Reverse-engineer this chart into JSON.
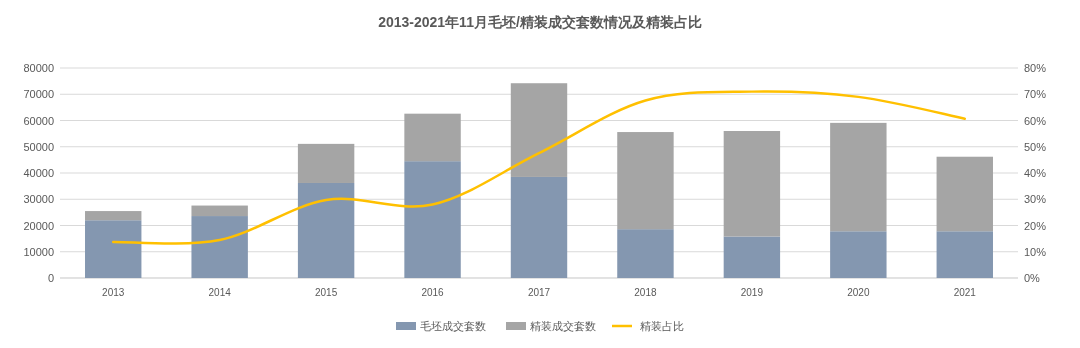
{
  "chart_data": {
    "type": "bar",
    "title": "2013-2021年11月毛坯/精装成交套数情况及精装占比",
    "categories": [
      "2013",
      "2014",
      "2015",
      "2016",
      "2017",
      "2018",
      "2019",
      "2020",
      "2021"
    ],
    "stacked": true,
    "legend": "bottom",
    "grid": "y",
    "series": [
      {
        "name": "毛坯成交套数",
        "color": "#8497b0",
        "values": [
          22000,
          23600,
          36200,
          44500,
          38500,
          18600,
          15800,
          17800,
          17800
        ]
      },
      {
        "name": "精装成交套数",
        "color": "#a5a5a5",
        "values": [
          3500,
          4000,
          14900,
          18100,
          35700,
          37000,
          40200,
          41300,
          28400
        ]
      },
      {
        "name": "精装占比",
        "type": "line",
        "axis": "y2",
        "color": "#ffc000",
        "values": [
          13.7,
          14.5,
          29.7,
          28,
          47.6,
          67.6,
          71,
          69,
          60.7
        ]
      }
    ],
    "ylim": [
      0,
      80000
    ],
    "yticks": [
      0,
      10000,
      20000,
      30000,
      40000,
      50000,
      60000,
      70000,
      80000
    ],
    "y2lim": [
      0,
      80
    ],
    "y2ticks": [
      {
        "value": 0,
        "label": "0%"
      },
      {
        "value": 10,
        "label": "10%"
      },
      {
        "value": 20,
        "label": "20%"
      },
      {
        "value": 30,
        "label": "30%"
      },
      {
        "value": 40,
        "label": "40%"
      },
      {
        "value": 50,
        "label": "50%"
      },
      {
        "value": 60,
        "label": "60%"
      },
      {
        "value": 70,
        "label": "70%"
      },
      {
        "value": 80,
        "label": "80%"
      }
    ]
  }
}
